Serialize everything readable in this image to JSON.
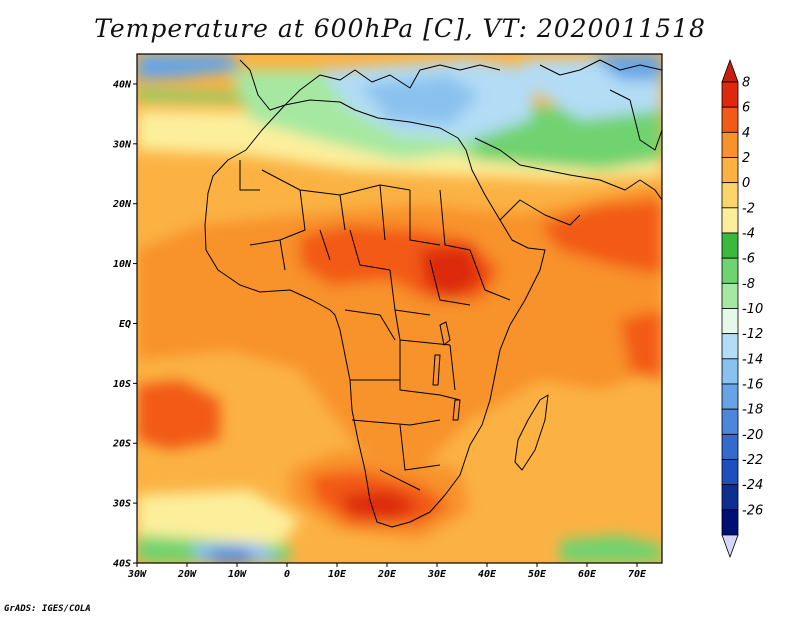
{
  "title": "Temperature at 600hPa [C], VT: 2020011518",
  "credit": "GrADS: IGES/COLA",
  "map": {
    "lon_range": [
      -30,
      75
    ],
    "lat_range": [
      -40,
      45
    ],
    "lat_ticks": [
      {
        "value": 40,
        "label": "40N"
      },
      {
        "value": 30,
        "label": "30N"
      },
      {
        "value": 20,
        "label": "20N"
      },
      {
        "value": 10,
        "label": "10N"
      },
      {
        "value": 0,
        "label": "EQ"
      },
      {
        "value": -10,
        "label": "10S"
      },
      {
        "value": -20,
        "label": "20S"
      },
      {
        "value": -30,
        "label": "30S"
      },
      {
        "value": -40,
        "label": "40S"
      }
    ],
    "lon_ticks": [
      {
        "value": -30,
        "label": "30W"
      },
      {
        "value": -20,
        "label": "20W"
      },
      {
        "value": -10,
        "label": "10W"
      },
      {
        "value": 0,
        "label": "0"
      },
      {
        "value": 10,
        "label": "10E"
      },
      {
        "value": 20,
        "label": "20E"
      },
      {
        "value": 30,
        "label": "30E"
      },
      {
        "value": 40,
        "label": "40E"
      },
      {
        "value": 50,
        "label": "50E"
      },
      {
        "value": 60,
        "label": "60E"
      },
      {
        "value": 70,
        "label": "70E"
      }
    ]
  },
  "colorbar": {
    "levels": [
      "8",
      "6",
      "4",
      "2",
      "0",
      "-2",
      "-4",
      "-6",
      "-8",
      "-10",
      "-12",
      "-14",
      "-16",
      "-18",
      "-20",
      "-22",
      "-24",
      "-26"
    ],
    "colors": [
      "#dd2a0d",
      "#f25a17",
      "#f8922b",
      "#fbb243",
      "#fcd46c",
      "#fcef9c",
      "#3cb83c",
      "#6fd36f",
      "#a6e8a1",
      "#e6f8ea",
      "#b3dcf5",
      "#8ac2ef",
      "#66a4e6",
      "#4d86db",
      "#336bcd",
      "#1f4fbd",
      "#0f2f8e",
      "#000f73"
    ],
    "top_cap_color": "#c81e0f",
    "bottom_cap_color": "#d6d6fb"
  }
}
